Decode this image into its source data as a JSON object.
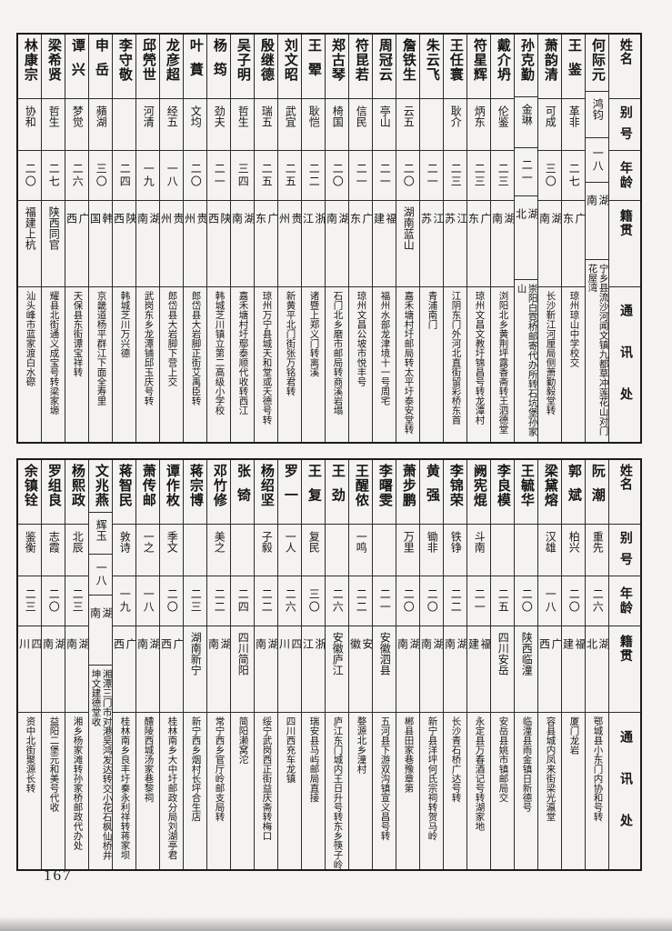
{
  "page": {
    "number": "167"
  },
  "row_headers": [
    "姓名",
    "别号",
    "年龄",
    "籍贯",
    "通讯处"
  ],
  "table_top": {
    "people": [
      {
        "name": "何际元",
        "hao": "鸿钧",
        "age": "一八",
        "origin": "湖南",
        "address": "宁乡县流沙河闻文镇九都草冲莲花山对门花屋湾"
      },
      {
        "name": "王鉴",
        "hao": "革非",
        "age": "二七",
        "origin": "广东",
        "address": "琼州琼山中学校交"
      },
      {
        "name": "萧韵清",
        "hao": "可成",
        "age": "三〇",
        "origin": "湖南",
        "address": "长沙靳江河厘局侧萧勤毅堂转"
      },
      {
        "name": "孙克勤",
        "hao": "金琳",
        "age": "二一",
        "origin": "湖北",
        "address": "崇阳白霓桥邮寄代办所转石坑堡孙家山"
      },
      {
        "name": "戴介坍",
        "hao": "伦鉴",
        "age": "二三",
        "origin": "湖南",
        "address": "浏阳北乡黄荆坪露香斋转王泗德堂"
      },
      {
        "name": "符星辉",
        "hao": "炳东",
        "age": "二三",
        "origin": "广东",
        "address": "琼州文昌文教圩锦昌号转龙潭村"
      },
      {
        "name": "王任寰",
        "hao": "耿介",
        "age": "二三",
        "origin": "江苏",
        "address": "江阴东门外河北直街留彩桥东首"
      },
      {
        "name": "朱云飞",
        "hao": "",
        "age": "二一",
        "origin": "江苏",
        "address": "青浦南门"
      },
      {
        "name": "詹铁生",
        "hao": "云五",
        "age": "二〇",
        "origin": "湖南蓝山",
        "address": "嘉禾塘村圩邮局转太平圩泰安堂转"
      },
      {
        "name": "周冠云",
        "hao": "亭山",
        "age": "二一",
        "origin": "福建",
        "address": "福州水部龙津境十一号周宅"
      },
      {
        "name": "符昆若",
        "hao": "信民",
        "age": "二一",
        "origin": "广东",
        "address": "琼州文昌公坡市悦丰号"
      },
      {
        "name": "郑古琴",
        "hao": "椅国",
        "age": "二〇",
        "origin": "湖南",
        "address": "石门北乡磨市邮局转商溪岩塌"
      },
      {
        "name": "王翚",
        "hao": "耿恺",
        "age": "二二",
        "origin": "浙江",
        "address": "诸暨上郑义门转离溪"
      },
      {
        "name": "刘文昭",
        "hao": "武宜",
        "age": "二五",
        "origin": "贵州",
        "address": "新黄平北门街张万铭君转"
      },
      {
        "name": "殷继德",
        "hao": "瑞五",
        "age": "二五",
        "origin": "广东",
        "address": "琼州万宁县城天和堂或天德号转"
      },
      {
        "name": "吴子明",
        "hao": "哲生",
        "age": "三四",
        "origin": "湖南",
        "address": "嘉禾塘村圩鄢泰顺代收转西江"
      },
      {
        "name": "杨筠",
        "hao": "劲夫",
        "age": "二一",
        "origin": "陕西",
        "address": "韩城芝川镇立第二高级小学校"
      },
      {
        "name": "叶蕡",
        "hao": "文均",
        "age": "二〇",
        "origin": "贵州",
        "address": "郎岱县大岩脚正街艾禹臣转"
      },
      {
        "name": "龙彦超",
        "hao": "经五",
        "age": "一八",
        "origin": "贵州",
        "address": "郎岱县大岩脚下营上交"
      },
      {
        "name": "邱焭世",
        "hao": "河清",
        "age": "一九",
        "origin": "湖南",
        "address": "武岗东乡龙潭铺邱玉庆号转"
      },
      {
        "name": "李守敬",
        "hao": "",
        "age": "二四",
        "origin": "陕西",
        "address": "韩城芝川万兴德"
      },
      {
        "name": "申岳",
        "hao": "蘋湖",
        "age": "三〇",
        "origin": "韩国",
        "address": "京畿道杨平群江下面全寿里"
      },
      {
        "name": "谭兴",
        "hao": "梦觉",
        "age": "二六",
        "origin": "广西",
        "address": "天保县东街谭宝祥转"
      },
      {
        "name": "梁希贤",
        "hao": "哲生",
        "age": "二七",
        "origin": "陕西同官",
        "address": "耀县北街通义成宝号转梁家塬"
      },
      {
        "name": "林康宗",
        "hao": "协和",
        "age": "二〇",
        "origin": "福建上杭",
        "address": "汕头峰市蓝家渡白水磜"
      }
    ]
  },
  "table_bottom": {
    "people": [
      {
        "name": "阮潮",
        "hao": "重先",
        "age": "二六",
        "origin": "湖北",
        "address": "鄂城县小东门内协和号转"
      },
      {
        "name": "郭斌",
        "hao": "柏兴",
        "age": "二〇",
        "origin": "福建",
        "address": "厦门龙岩"
      },
      {
        "name": "梁黛熔",
        "hao": "汉雄",
        "age": "一八",
        "origin": "广西",
        "address": "容县城内凤来街梁光瀛堂"
      },
      {
        "name": "王毓华",
        "hao": "",
        "age": "二〇",
        "origin": "陕西临潼",
        "address": "临潼县雨金镇日新德号"
      },
      {
        "name": "李良模",
        "hao": "",
        "age": "二五",
        "origin": "四川安岳",
        "address": "安岳县姚市镇邮局交"
      },
      {
        "name": "阙宪焜",
        "hao": "斗南",
        "age": "二一",
        "origin": "福建",
        "address": "永定县万春酒记号转湖家地"
      },
      {
        "name": "李锦荣",
        "hao": "铁铮",
        "age": "二二",
        "origin": "湖南",
        "address": "长沙青石桥广达号转"
      },
      {
        "name": "黄强",
        "hao": "锄非",
        "age": "二〇",
        "origin": "湖南",
        "address": "新宁县洋坪何氏宗祠转贺马岭"
      },
      {
        "name": "萧步鹏",
        "hao": "万里",
        "age": "二〇",
        "origin": "湖南",
        "address": "郴县田家巷豫章第"
      },
      {
        "name": "李曙雯",
        "hao": "",
        "age": "二一",
        "origin": "安徽泗县",
        "address": "五河县下游双沟镇宣义昌号转"
      },
      {
        "name": "王醒侬",
        "hao": "一鸣",
        "age": "二二",
        "origin": "安徽",
        "address": "婺源北乡潼村"
      },
      {
        "name": "王劲",
        "hao": "",
        "age": "二六",
        "origin": "安徽庐江",
        "address": "庐江东门城内王日升号转东乡筷子岭"
      },
      {
        "name": "王复",
        "hao": "复民",
        "age": "三〇",
        "origin": "浙江",
        "address": "瑞安县马屿邮局直接"
      },
      {
        "name": "罗一",
        "hao": "一人",
        "age": "二六",
        "origin": "四川",
        "address": "四川西充车龙镇"
      },
      {
        "name": "杨绍坚",
        "hao": "子毅",
        "age": "二二",
        "origin": "湖南",
        "address": "绥宁武岗西正街益庆斋转梅口"
      },
      {
        "name": "张锜",
        "hao": "",
        "age": "二四",
        "origin": "四川简阳",
        "address": "简阳濑窝沱"
      },
      {
        "name": "邓竹修",
        "hao": "美之",
        "age": "二二",
        "origin": "湖南",
        "address": "常宁西乡官厅岭邮支局转"
      },
      {
        "name": "蒋宗博",
        "hao": "",
        "age": "二三",
        "origin": "湖南新宁",
        "address": "新宁西乡烟村长坪合生店"
      },
      {
        "name": "谭作枚",
        "hao": "季文",
        "age": "二〇",
        "origin": "广西",
        "address": "桂林南乡大中圩邮政分局刘湖亭君"
      },
      {
        "name": "萧传邮",
        "hao": "一之",
        "age": "一八",
        "origin": "湖南",
        "address": "醴陵西城汤家巷黎祠"
      },
      {
        "name": "蒋智民",
        "hao": "敦诗",
        "age": "一九",
        "origin": "广西",
        "address": "桂林南乡良丰圩秦永利祥转蒋家坝"
      },
      {
        "name": "文兆燕",
        "hao": "辉玉",
        "age": "一八",
        "origin": "湖南",
        "address": "湘潭三门市对港吴鸿发达转交小花石枫仙桥井坤文建德堂收"
      },
      {
        "name": "杨熙政",
        "hao": "北辰",
        "age": "二三",
        "origin": "湖南",
        "address": "湘乡杨家滩转孙家桥邮政代办处"
      },
      {
        "name": "罗组良",
        "hao": "志霞",
        "age": "二〇",
        "origin": "湖南",
        "address": "益阳二堡元和美号代收"
      },
      {
        "name": "余镇铨",
        "hao": "鉴衡",
        "age": "二三",
        "origin": "四川",
        "address": "资中北街聚源长转"
      }
    ]
  }
}
